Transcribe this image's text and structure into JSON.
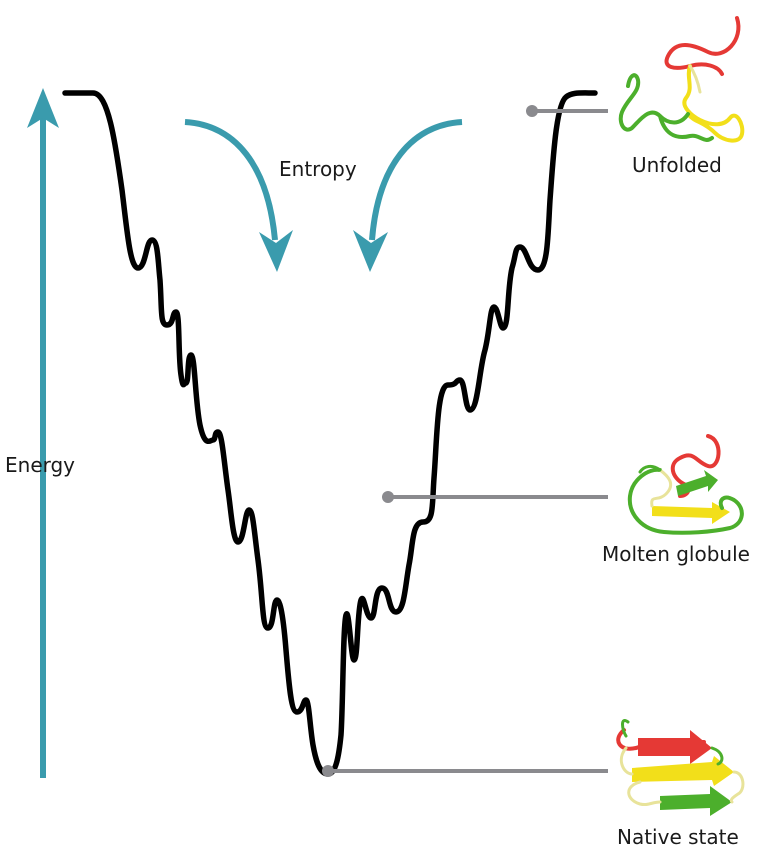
{
  "labels": {
    "energy_axis": "Energy",
    "entropy": "Entropy"
  },
  "states": [
    {
      "id": "unfolded",
      "label": "Unfolded"
    },
    {
      "id": "molten",
      "label": "Molten globule"
    },
    {
      "id": "native",
      "label": "Native state"
    }
  ],
  "colors": {
    "arrow": "#3a9bad",
    "curve": "#000000",
    "leader": "#8a8a8e",
    "protein_red": "#e53935",
    "protein_yellow": "#f2df1a",
    "protein_green": "#4caf2c",
    "protein_pale": "#e8e39a"
  }
}
